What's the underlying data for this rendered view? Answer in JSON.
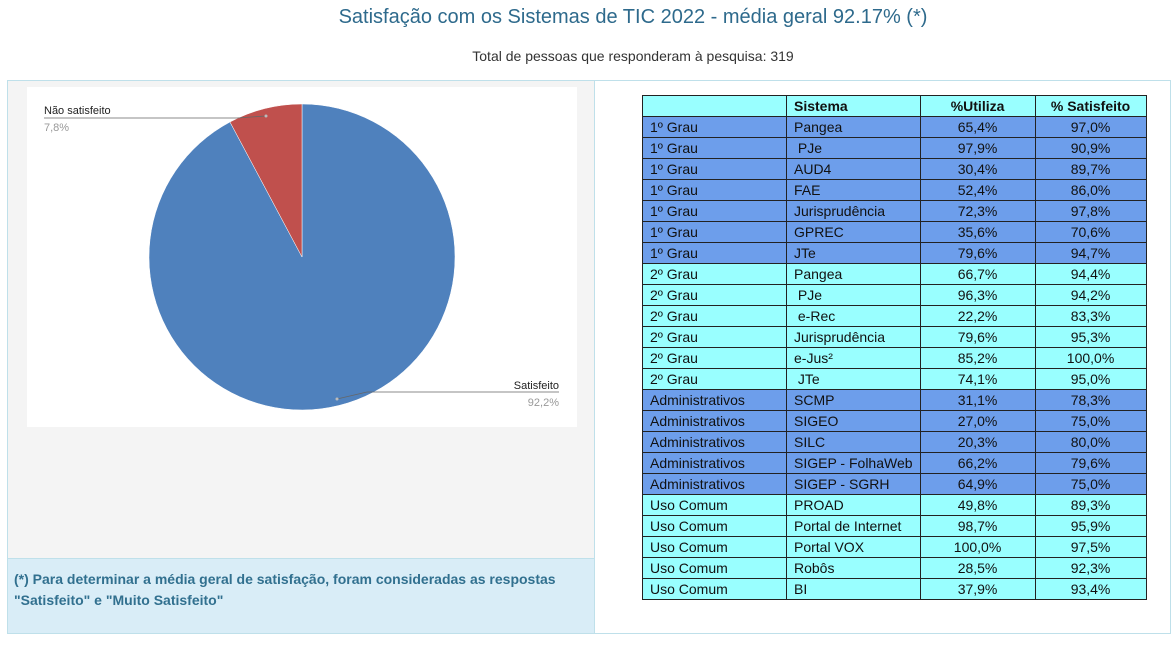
{
  "title": "Satisfação com os Sistemas de TIC 2022 - média geral 92.17% (*)",
  "subtitle": "Total de pessoas que responderam à pesquisa: 319",
  "chart_data": {
    "type": "pie",
    "slices": [
      {
        "label": "Satisfeito",
        "value": 92.2,
        "value_label": "92,2%",
        "color": "#4f81bd"
      },
      {
        "label": "Não satisfeito",
        "value": 7.8,
        "value_label": "7,8%",
        "color": "#c0504d"
      }
    ]
  },
  "note": "(*) Para determinar a média geral de satisfação, foram consideradas as respostas \"Satisfeito\" e \"Muito Satisfeito\"",
  "table": {
    "headers": [
      "",
      "Sistema",
      "%Utiliza",
      "% Satisfeito"
    ],
    "rows": [
      [
        "1º Grau",
        "Pangea",
        "65,4%",
        "97,0%",
        "blue"
      ],
      [
        "1º Grau",
        " PJe",
        "97,9%",
        "90,9%",
        "blue"
      ],
      [
        "1º Grau",
        "AUD4",
        "30,4%",
        "89,7%",
        "blue"
      ],
      [
        "1º Grau",
        "FAE",
        "52,4%",
        "86,0%",
        "blue"
      ],
      [
        "1º Grau",
        "Jurisprudência",
        "72,3%",
        "97,8%",
        "blue"
      ],
      [
        "1º Grau",
        "GPREC",
        "35,6%",
        "70,6%",
        "blue"
      ],
      [
        "1º Grau",
        "JTe",
        "79,6%",
        "94,7%",
        "blue"
      ],
      [
        "2º Grau",
        "Pangea",
        "66,7%",
        "94,4%",
        "cyan"
      ],
      [
        "2º Grau",
        " PJe",
        "96,3%",
        "94,2%",
        "cyan"
      ],
      [
        "2º Grau",
        " e-Rec",
        "22,2%",
        "83,3%",
        "cyan"
      ],
      [
        "2º Grau",
        "Jurisprudência",
        "79,6%",
        "95,3%",
        "cyan"
      ],
      [
        "2º Grau",
        "e-Jus²",
        "85,2%",
        "100,0%",
        "cyan"
      ],
      [
        "2º Grau",
        " JTe",
        "74,1%",
        "95,0%",
        "cyan"
      ],
      [
        "Administrativos",
        "SCMP",
        "31,1%",
        "78,3%",
        "blue"
      ],
      [
        "Administrativos",
        "SIGEO",
        "27,0%",
        "75,0%",
        "blue"
      ],
      [
        "Administrativos",
        "SILC",
        "20,3%",
        "80,0%",
        "blue"
      ],
      [
        "Administrativos",
        "SIGEP - FolhaWeb",
        "66,2%",
        "79,6%",
        "blue"
      ],
      [
        "Administrativos",
        "SIGEP - SGRH",
        "64,9%",
        "75,0%",
        "blue"
      ],
      [
        "Uso Comum",
        "PROAD",
        "49,8%",
        "89,3%",
        "cyan"
      ],
      [
        "Uso Comum",
        "Portal de Internet",
        "98,7%",
        "95,9%",
        "cyan"
      ],
      [
        "Uso Comum",
        "Portal VOX",
        "100,0%",
        "97,5%",
        "cyan"
      ],
      [
        "Uso Comum",
        "Robôs",
        "28,5%",
        "92,3%",
        "cyan"
      ],
      [
        "Uso Comum",
        "BI",
        "37,9%",
        "93,4%",
        "cyan"
      ]
    ]
  }
}
